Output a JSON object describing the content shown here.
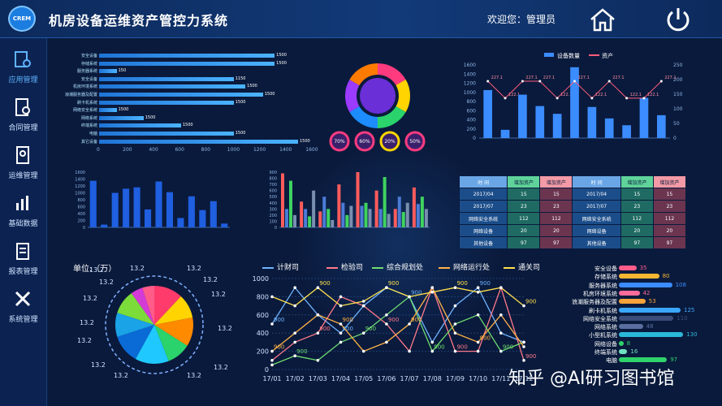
{
  "header": {
    "logo_text": "CREM",
    "title": "机房设备运维资产管控力系统",
    "welcome": "欢迎您：管理员"
  },
  "sidebar": {
    "items": [
      {
        "label": "应用管理",
        "icon": "app-manage-icon",
        "active": true
      },
      {
        "label": "合同管理",
        "icon": "contract-icon",
        "active": false
      },
      {
        "label": "运维管理",
        "icon": "ops-icon",
        "active": false
      },
      {
        "label": "基础数据",
        "icon": "chart-icon",
        "active": false
      },
      {
        "label": "报表管理",
        "icon": "report-icon",
        "active": false
      },
      {
        "label": "系统管理",
        "icon": "tools-icon",
        "active": false
      }
    ]
  },
  "hbar_chart": {
    "categories": [
      "安全设备",
      "存储系统",
      "服务器系统",
      "安全设备",
      "机房环境系统",
      "浪潮服务器及配置",
      "刷卡机系统",
      "网络安全系统",
      "网络系统",
      "终端系统",
      "电脑",
      "其它设备"
    ],
    "values": [
      1500,
      1500,
      150,
      1150,
      1250,
      1400,
      1150,
      150,
      380,
      700,
      1150,
      1700
    ],
    "value_labels": [
      "1500",
      "1500",
      "150",
      "1150",
      "1500",
      "1500",
      "1500",
      "1500",
      "1500",
      "1500",
      "1500",
      "1500"
    ],
    "ticks": [
      "0",
      "200",
      "400",
      "600",
      "800",
      "1000",
      "1200",
      "1400",
      "1600"
    ],
    "max": 1700
  },
  "donut": {
    "center": "",
    "mini": [
      "70%",
      "60%",
      "20%",
      "50%"
    ]
  },
  "combo_chart": {
    "legend": [
      "设备数量",
      "资产"
    ],
    "bars": [
      1050,
      180,
      950,
      700,
      530,
      1550,
      680,
      430,
      280,
      880,
      500
    ],
    "line": [
      227.1,
      122.1,
      227.1,
      227.1,
      122.1,
      227.1,
      122.1,
      227.1,
      122.1,
      122.1,
      227.1
    ],
    "line_labels": [
      "227.1",
      "122.1",
      "227.1",
      "227.1",
      "122.1",
      "227.1",
      "122.1",
      "227.1",
      "122.1",
      "122.1",
      "227.1"
    ],
    "left_ticks": [
      "0",
      "200",
      "400",
      "600",
      "800",
      "1000",
      "1200",
      "1400",
      "1600"
    ],
    "right_ticks": [
      "0",
      "50",
      "100",
      "150",
      "200",
      "250"
    ]
  },
  "bar_chart_small": {
    "values": [
      1350,
      80,
      1000,
      1120,
      1160,
      520,
      1330,
      1020,
      270,
      900,
      500,
      760,
      110
    ],
    "ticks": [
      "0",
      "200",
      "400",
      "600",
      "800",
      "1000",
      "1200",
      "1400",
      "1600"
    ]
  },
  "multi_bar": {
    "ticks": [
      "0",
      "100",
      "200",
      "300",
      "400",
      "500",
      "600",
      "700",
      "800",
      "900"
    ]
  },
  "table": {
    "headers": [
      "时 间",
      "增加资产",
      "增加资产",
      "时 间",
      "增加资产",
      "增加资产"
    ],
    "rows": [
      [
        "2017/04",
        "15",
        "15",
        "2017/04",
        "15",
        "15"
      ],
      [
        "2017/07",
        "23",
        "23",
        "2017/07",
        "23",
        "23"
      ],
      [
        "网络安全系统",
        "112",
        "112",
        "网络安全系统",
        "112",
        "112"
      ],
      [
        "网络设备",
        "20",
        "20",
        "网络设备",
        "20",
        "20"
      ],
      [
        "其他设备",
        "97",
        "97",
        "其他设备",
        "97",
        "97"
      ]
    ]
  },
  "systems": [
    {
      "name": "安全设备",
      "value": "35",
      "color": "#ff5c8a",
      "frac": 0.27
    },
    {
      "name": "存储系统",
      "value": "80",
      "color": "#f7b733",
      "frac": 0.62
    },
    {
      "name": "服务器系统",
      "value": "108",
      "color": "#3b8cff",
      "frac": 0.82
    },
    {
      "name": "机房环境系统",
      "value": "42",
      "color": "#ff6b9a",
      "frac": 0.32
    },
    {
      "name": "浪潮服务器及配置",
      "value": "53",
      "color": "#f7a23a",
      "frac": 0.41
    },
    {
      "name": "刷卡机系统",
      "value": "125",
      "color": "#3ba7ff",
      "frac": 0.95
    },
    {
      "name": "网络安全系统",
      "value": "110",
      "color": "#3a4d7a",
      "frac": 0.84
    },
    {
      "name": "网络系统",
      "value": "48",
      "color": "#5a6fa0",
      "frac": 0.37
    },
    {
      "name": "小型机系统",
      "value": "130",
      "color": "#2ab9d8",
      "frac": 0.99
    },
    {
      "name": "网络设备",
      "value": "8",
      "color": "#2fd26b",
      "frac": 0.07
    },
    {
      "name": "终端系统",
      "value": "16",
      "color": "#6fe0c0",
      "frac": 0.13
    },
    {
      "name": "电脑",
      "value": "97",
      "color": "#2fd26b",
      "frac": 0.74
    }
  ],
  "pie": {
    "unit": "单位:（万）",
    "labels": [
      "13.2",
      "13.2",
      "13.2",
      "13.2",
      "13.2",
      "13.2",
      "13.2",
      "13.2",
      "13.2",
      "13.2",
      "13.2",
      "13.2",
      "13.2",
      "13.2"
    ]
  },
  "line_chart": {
    "legend": [
      {
        "name": "计财司",
        "color": "#6fb3ff"
      },
      {
        "name": "检验司",
        "color": "#ff7a8a"
      },
      {
        "name": "综合规划处",
        "color": "#6fdc6f"
      },
      {
        "name": "网络运行处",
        "color": "#ffb347"
      },
      {
        "name": "通关司",
        "color": "#ffe14d"
      }
    ],
    "categories": [
      "17/01",
      "17/02",
      "17/03",
      "17/04",
      "17/05",
      "17/06",
      "17/07",
      "17/08",
      "17/09",
      "17/10",
      "17/11",
      "17/12"
    ],
    "yticks": [
      "0",
      "200",
      "400",
      "600",
      "800",
      "1000"
    ],
    "point_label": "900"
  },
  "watermark": "知乎 @AI研习图书馆"
}
